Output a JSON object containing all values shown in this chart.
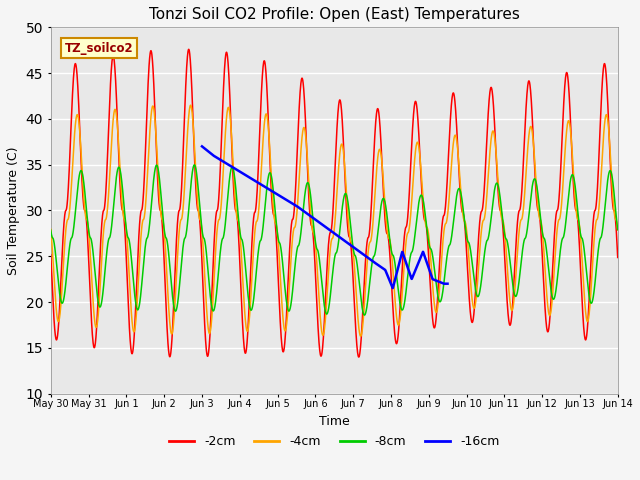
{
  "title": "Tonzi Soil CO2 Profile: Open (East) Temperatures",
  "xlabel": "Time",
  "ylabel": "Soil Temperature (C)",
  "ylim": [
    10,
    50
  ],
  "background_color": "#e8e8e8",
  "plot_bg_color": "#e8e8e8",
  "grid_color": "#ffffff",
  "legend_labels": [
    "-2cm",
    "-4cm",
    "-8cm",
    "-16cm"
  ],
  "legend_colors": [
    "#ff0000",
    "#ffa500",
    "#00cc00",
    "#0000ff"
  ],
  "watermark_text": "TZ_soilco2",
  "watermark_bg": "#ffffcc",
  "watermark_border": "#cc8800",
  "tick_labels": [
    "May 30",
    "May 31",
    "Jun 1",
    "Jun 2",
    "Jun 3",
    "Jun 4",
    "Jun 5",
    "Jun 6",
    "Jun 7",
    "Jun 8",
    "Jun 9",
    "Jun 10",
    "Jun 11",
    "Jun 12",
    "Jun 13",
    "Jun 14"
  ],
  "tick_positions": [
    0,
    1,
    2,
    3,
    4,
    5,
    6,
    7,
    8,
    9,
    10,
    11,
    12,
    13,
    14,
    15
  ]
}
